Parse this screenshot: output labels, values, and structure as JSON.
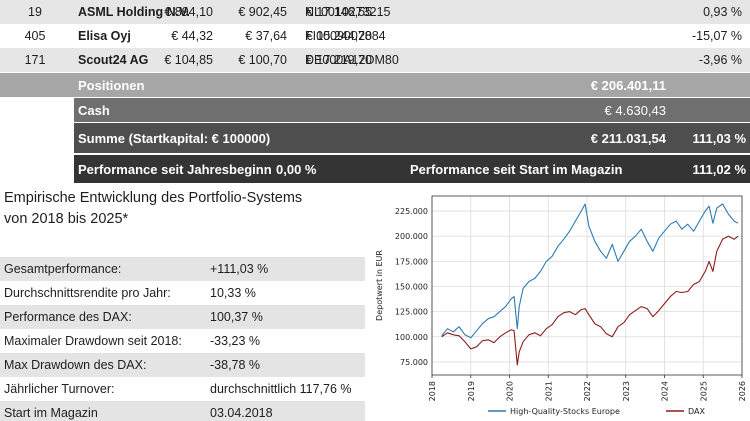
{
  "holdings": [
    {
      "qty": "19",
      "name": "ASML Holding N.V.",
      "isin": "NL0010273215",
      "buy": "€ 894,10",
      "current": "€ 902,45",
      "value": "€ 17.146,55",
      "perf": "0,93 %"
    },
    {
      "qty": "405",
      "name": "Elisa Oyj",
      "isin": "FI0009007884",
      "buy": "€ 44,32",
      "current": "€ 37,64",
      "value": "€ 15.244,20",
      "perf": "-15,07 %"
    },
    {
      "qty": "171",
      "name": "Scout24 AG",
      "isin": "DE000A12DM80",
      "buy": "€ 104,85",
      "current": "€ 100,70",
      "value": "€ 17.219,70",
      "perf": "-3,96 %"
    }
  ],
  "summary": {
    "positions_label": "Positionen",
    "positions_value": "€ 206.401,11",
    "cash_label": "Cash",
    "cash_value": "€ 4.630,43",
    "sum_label": "Summe (Startkapital: € 100000)",
    "sum_value": "€ 211.031,54",
    "sum_pct": "111,03 %",
    "ytd_label": "Performance seit Jahresbeginn",
    "ytd_value": "0,00 %",
    "since_label": "Performance seit Start im Magazin",
    "since_value": "111,02 %"
  },
  "stats": {
    "title_line1": "Empirische Entwicklung des Portfolio-Systems",
    "title_line2": "von 2018 bis 2025*",
    "rows": [
      {
        "label": "Gesamtperformance:",
        "value": "+111,03 %"
      },
      {
        "label": "Durchschnittsrendite pro Jahr:",
        "value": "10,33 %"
      },
      {
        "label": "Performance des DAX:",
        "value": "100,37 %"
      },
      {
        "label": "Maximaler Drawdown seit 2018:",
        "value": "-33,23 %"
      },
      {
        "label": "Max Drawdown des DAX:",
        "value": "-38,78 %"
      },
      {
        "label": "Jährlicher Turnover:",
        "value": "durchschnittlich 117,76 %"
      },
      {
        "label": "Start im Magazin",
        "value": "03.04.2018"
      }
    ]
  },
  "chart_data": {
    "type": "line",
    "title": "",
    "xlabel": "",
    "ylabel": "Depotwert in EUR",
    "xlim": [
      2018.0,
      2026.0
    ],
    "ylim": [
      62000,
      240000
    ],
    "x_ticks": [
      "2018",
      "2019",
      "2020",
      "2021",
      "2022",
      "2023",
      "2024",
      "2025",
      "2026"
    ],
    "y_ticks": [
      {
        "value": 75000,
        "label": "75.000"
      },
      {
        "value": 100000,
        "label": "100.000"
      },
      {
        "value": 125000,
        "label": "125.000"
      },
      {
        "value": 150000,
        "label": "150.000"
      },
      {
        "value": 175000,
        "label": "175.000"
      },
      {
        "value": 200000,
        "label": "200.000"
      },
      {
        "value": 225000,
        "label": "225.000"
      }
    ],
    "grid": true,
    "legend": "bottom",
    "series": [
      {
        "name": "High-Quality-Stocks Europe",
        "color": "#2e7bb4",
        "x": [
          2018.25,
          2018.4,
          2018.55,
          2018.7,
          2018.85,
          2019.0,
          2019.15,
          2019.3,
          2019.45,
          2019.6,
          2019.75,
          2019.9,
          2020.05,
          2020.12,
          2020.2,
          2020.25,
          2020.35,
          2020.5,
          2020.65,
          2020.8,
          2020.95,
          2021.1,
          2021.25,
          2021.4,
          2021.55,
          2021.7,
          2021.85,
          2021.95,
          2022.05,
          2022.2,
          2022.35,
          2022.5,
          2022.65,
          2022.8,
          2022.95,
          2023.1,
          2023.25,
          2023.4,
          2023.55,
          2023.7,
          2023.85,
          2024.0,
          2024.15,
          2024.3,
          2024.45,
          2024.6,
          2024.75,
          2024.9,
          2025.05,
          2025.15,
          2025.25,
          2025.35,
          2025.5,
          2025.65,
          2025.8,
          2025.9
        ],
        "y": [
          101000,
          108000,
          105000,
          110000,
          102000,
          99000,
          106000,
          113000,
          118000,
          120000,
          125000,
          130000,
          138000,
          140000,
          108000,
          130000,
          148000,
          155000,
          158000,
          165000,
          175000,
          180000,
          190000,
          197000,
          205000,
          215000,
          225000,
          232000,
          210000,
          195000,
          185000,
          178000,
          192000,
          175000,
          185000,
          195000,
          200000,
          207000,
          195000,
          185000,
          198000,
          205000,
          212000,
          215000,
          207000,
          212000,
          205000,
          215000,
          225000,
          230000,
          213000,
          228000,
          232000,
          222000,
          215000,
          213000
        ]
      },
      {
        "name": "DAX",
        "color": "#8e1d1d",
        "x": [
          2018.25,
          2018.4,
          2018.55,
          2018.7,
          2018.85,
          2019.0,
          2019.15,
          2019.3,
          2019.45,
          2019.6,
          2019.75,
          2019.9,
          2020.05,
          2020.12,
          2020.2,
          2020.25,
          2020.35,
          2020.5,
          2020.65,
          2020.8,
          2020.95,
          2021.1,
          2021.25,
          2021.4,
          2021.55,
          2021.7,
          2021.85,
          2021.95,
          2022.05,
          2022.2,
          2022.35,
          2022.5,
          2022.65,
          2022.8,
          2022.95,
          2023.1,
          2023.25,
          2023.4,
          2023.55,
          2023.7,
          2023.85,
          2024.0,
          2024.15,
          2024.3,
          2024.45,
          2024.6,
          2024.75,
          2024.9,
          2025.05,
          2025.15,
          2025.25,
          2025.35,
          2025.5,
          2025.65,
          2025.8,
          2025.9
        ],
        "y": [
          100000,
          104000,
          102000,
          101000,
          95000,
          88000,
          90000,
          96000,
          97000,
          94000,
          100000,
          104000,
          107000,
          106000,
          72000,
          85000,
          95000,
          102000,
          104000,
          101000,
          108000,
          112000,
          120000,
          124000,
          125000,
          122000,
          127000,
          128000,
          122000,
          113000,
          110000,
          103000,
          100000,
          110000,
          114000,
          122000,
          126000,
          130000,
          128000,
          120000,
          126000,
          133000,
          140000,
          145000,
          144000,
          145000,
          152000,
          155000,
          165000,
          175000,
          165000,
          185000,
          197000,
          200000,
          197000,
          200000
        ]
      }
    ]
  }
}
